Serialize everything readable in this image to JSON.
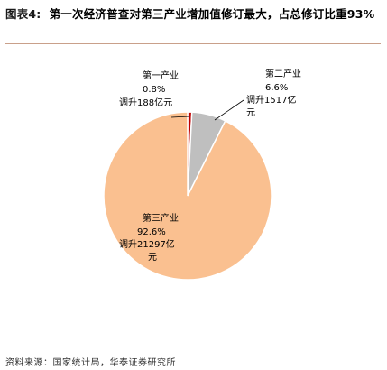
{
  "figure": {
    "label": "图表4:",
    "title": "第一次经济普查对第三产业增加值修订最大，占总修订比重93%"
  },
  "chart_data": {
    "type": "pie",
    "slices": [
      {
        "name": "第一产业",
        "percent_label": "0.8%",
        "value": 188,
        "value_label": "调升188亿元",
        "color": "#c00000"
      },
      {
        "name": "第二产业",
        "percent_label": "6.6%",
        "value": 1517,
        "value_label": "调升1517亿元",
        "color": "#bfbfbf"
      },
      {
        "name": "第三产业",
        "percent_label": "92.6%",
        "value": 21297,
        "value_label": "调升21297亿元",
        "color": "#fac090"
      }
    ],
    "start": "12 o'clock",
    "direction": "clockwise",
    "legend": "none"
  },
  "source": "资料来源：国家统计局，华泰证券研究所"
}
